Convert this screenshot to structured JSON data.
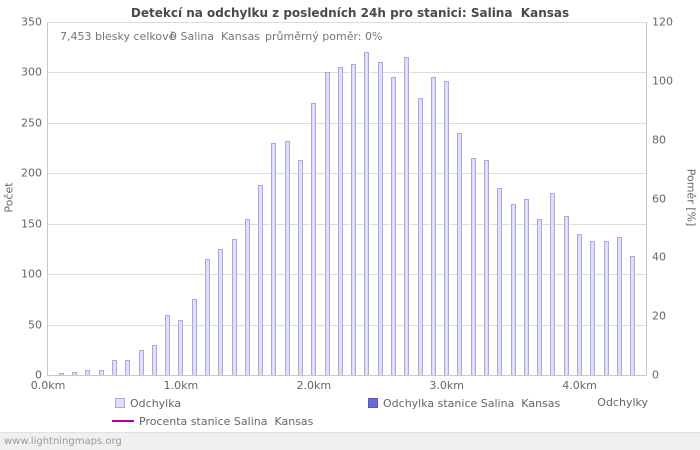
{
  "title": "Detekcí na odchylku z posledních 24h pro stanici: Salina  Kansas",
  "annotations": {
    "total": "7,453 blesky celkově",
    "station": "0 Salina  Kansas",
    "avg_ratio": "průměrný poměr: 0%"
  },
  "axes": {
    "left_label": "Počet",
    "right_label": "Poměr [%]",
    "x_label": "Odchylky"
  },
  "legend": [
    {
      "label": "Odchylka",
      "type": "bar",
      "fill": "#dfdffa",
      "border": "#a9a9e2"
    },
    {
      "label": "Odchylka stanice Salina  Kansas",
      "type": "bar",
      "fill": "#6a6ad8",
      "border": "#5555c0"
    },
    {
      "label": "Procenta stanice Salina  Kansas",
      "type": "line",
      "fill": "#a800a8",
      "border": "#a800a8"
    }
  ],
  "footer": "www.lightningmaps.org",
  "chart_data": {
    "type": "bar",
    "title": "Detekcí na odchylku z posledních 24h pro stanici: Salina  Kansas",
    "xlabel": "Odchylky",
    "ylabel_left": "Počet",
    "ylabel_right": "Poměr [%]",
    "x_unit": "km",
    "x_range": [
      0,
      4.5
    ],
    "x": [
      0.1,
      0.2,
      0.3,
      0.4,
      0.5,
      0.6,
      0.7,
      0.8,
      0.9,
      1.0,
      1.1,
      1.2,
      1.3,
      1.4,
      1.5,
      1.6,
      1.7,
      1.8,
      1.9,
      2.0,
      2.1,
      2.2,
      2.3,
      2.4,
      2.5,
      2.6,
      2.7,
      2.8,
      2.9,
      3.0,
      3.1,
      3.2,
      3.3,
      3.4,
      3.5,
      3.6,
      3.7,
      3.8,
      3.9,
      4.0,
      4.1,
      4.2,
      4.3,
      4.4
    ],
    "values": [
      2,
      3,
      5,
      5,
      15,
      15,
      25,
      30,
      60,
      55,
      75,
      115,
      125,
      135,
      155,
      188,
      230,
      232,
      213,
      270,
      300,
      305,
      308,
      320,
      310,
      295,
      315,
      275,
      295,
      292,
      240,
      215,
      213,
      185,
      170,
      175,
      155,
      180,
      158,
      140,
      133,
      133,
      137,
      118
    ],
    "station_values_total": 0,
    "x_ticks": [
      {
        "value": 0,
        "label": "0.0km"
      },
      {
        "value": 1,
        "label": "1.0km"
      },
      {
        "value": 2,
        "label": "2.0km"
      },
      {
        "value": 3,
        "label": "3.0km"
      },
      {
        "value": 4,
        "label": "4.0km"
      }
    ],
    "y_left": {
      "min": 0,
      "max": 350,
      "step": 50
    },
    "y_right": {
      "min": 0,
      "max": 120,
      "step": 20
    },
    "grid": true,
    "legend_position": "bottom",
    "bar_fill": "#dfdffa",
    "bar_border": "#a9a9e2"
  }
}
